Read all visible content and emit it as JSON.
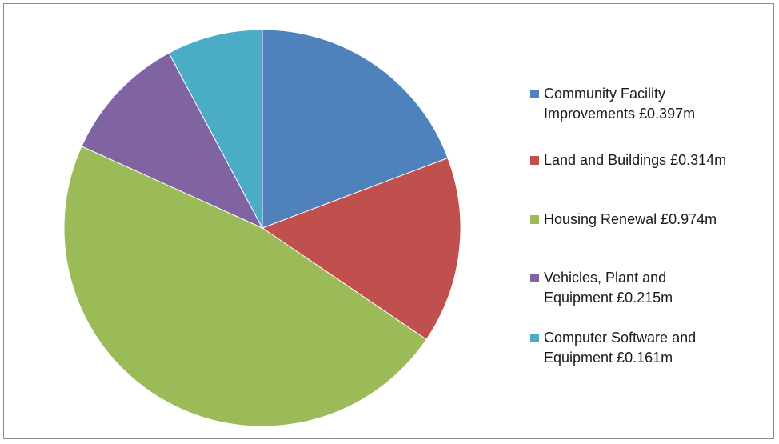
{
  "chart_data": {
    "type": "pie",
    "title": "",
    "legend_position": "right",
    "slices": [
      {
        "label": "Community Facility\nImprovements £0.397m",
        "value": 0.397,
        "color": "#4f81bd"
      },
      {
        "label": "Land and Buildings £0.314m",
        "value": 0.314,
        "color": "#c0504d"
      },
      {
        "label": "Housing Renewal £0.974m",
        "value": 0.974,
        "color": "#9bbb59"
      },
      {
        "label": "Vehicles, Plant and\nEquipment £0.215m",
        "value": 0.215,
        "color": "#8064a2"
      },
      {
        "label": "Computer Software and\nEquipment £0.161m",
        "value": 0.161,
        "color": "#4bacc6"
      }
    ]
  }
}
